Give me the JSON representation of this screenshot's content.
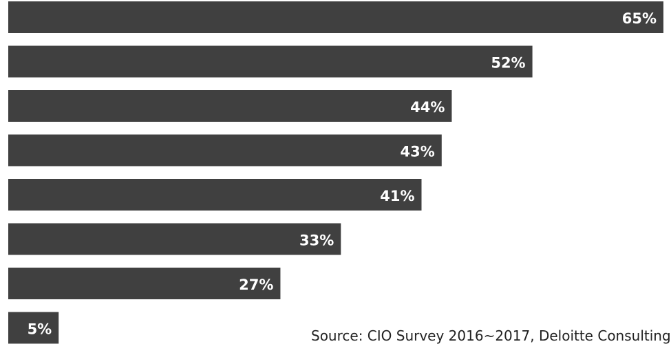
{
  "chart_data": {
    "type": "bar",
    "orientation": "horizontal",
    "values": [
      65,
      52,
      44,
      43,
      41,
      33,
      27,
      5
    ],
    "data_labels": [
      "65%",
      "52%",
      "44%",
      "43%",
      "41%",
      "33%",
      "27%",
      "5%"
    ],
    "xlim": [
      0,
      65
    ],
    "grid": false,
    "legend": "none",
    "bar_color": "#404040",
    "label_color": "#ffffff",
    "source": "Source: CIO Survey 2016~2017, Deloitte Consulting"
  }
}
